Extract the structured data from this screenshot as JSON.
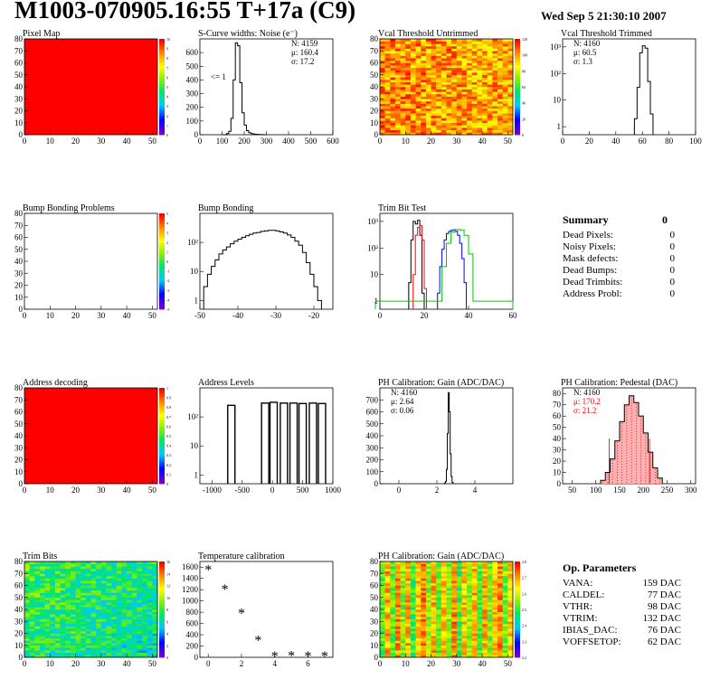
{
  "header": {
    "title": "M1003-070905.16:55 T+17a (C9)",
    "date": "Wed Sep  5 21:30:10 2007"
  },
  "chart_data": [
    {
      "id": "pixel-map",
      "type": "heatmap",
      "title": "Pixel Map",
      "pattern": "uniform_max",
      "xlim": [
        0,
        52
      ],
      "ylim": [
        0,
        80
      ],
      "xticks": [
        0,
        10,
        20,
        30,
        40,
        50
      ],
      "yticks": [
        0,
        10,
        20,
        30,
        40,
        50,
        60,
        70,
        80
      ],
      "zticks": [
        "0",
        "1",
        "2",
        "3",
        "4",
        "5",
        "6",
        "7",
        "8",
        "9",
        "10"
      ],
      "zlabel_mode": "int"
    },
    {
      "id": "scurve",
      "type": "histogram",
      "title": "S-Curve widths: Noise (e⁻)",
      "xlim": [
        0,
        600
      ],
      "ylim": [
        0,
        700
      ],
      "xticks": [
        0,
        100,
        200,
        300,
        400,
        500,
        600
      ],
      "yticks": [
        0,
        100,
        200,
        300,
        400,
        500,
        600
      ],
      "bins_x": [
        100,
        110,
        120,
        130,
        140,
        150,
        160,
        170,
        180,
        190,
        200,
        210,
        220,
        230,
        240,
        250,
        260,
        270,
        280,
        290,
        300
      ],
      "values": [
        0,
        0,
        8,
        25,
        120,
        400,
        670,
        650,
        380,
        160,
        70,
        30,
        15,
        8,
        5,
        3,
        2,
        1,
        1,
        0
      ],
      "stats": [
        "N: 4159",
        "μ: 160.4",
        "σ: 17.2"
      ],
      "annotation": "<= 1"
    },
    {
      "id": "vcal-untrimmed",
      "type": "heatmap",
      "title": "Vcal Threshold Untrimmed",
      "pattern": "noisy_warm",
      "xlim": [
        0,
        52
      ],
      "ylim": [
        0,
        80
      ],
      "xticks": [
        0,
        10,
        20,
        30,
        40,
        50
      ],
      "yticks": [
        0,
        10,
        20,
        30,
        40,
        50,
        60,
        70,
        80
      ],
      "zticks": [
        "0",
        "20",
        "40",
        "60",
        "80",
        "100",
        "120"
      ]
    },
    {
      "id": "vcal-trimmed",
      "type": "histogram",
      "title": "Vcal Threshold Trimmed",
      "log": true,
      "xlim": [
        0,
        100
      ],
      "ylim": [
        0.5,
        2000
      ],
      "xticks": [
        0,
        20,
        40,
        60,
        80,
        100
      ],
      "yticks": [
        1,
        10,
        100,
        1000
      ],
      "bins_x": [
        54,
        56,
        58,
        60,
        62,
        64,
        66,
        68
      ],
      "values": [
        2,
        30,
        600,
        1100,
        900,
        50,
        3
      ],
      "stats": [
        "N: 4160",
        "μ: 60.5",
        "σ:  1.3"
      ]
    },
    {
      "id": "bump-problems",
      "type": "heatmap",
      "title": "Bump Bonding Problems",
      "pattern": "empty",
      "xlim": [
        0,
        52
      ],
      "ylim": [
        0,
        80
      ],
      "xticks": [
        0,
        10,
        20,
        30,
        40,
        50
      ],
      "yticks": [
        0,
        10,
        20,
        30,
        40,
        50,
        60,
        70,
        80
      ],
      "zticks": [
        "-5",
        "-4",
        "-3",
        "-2",
        "-1",
        "0",
        "1",
        "2",
        "3",
        "4",
        "5"
      ]
    },
    {
      "id": "bump-bonding",
      "type": "histogram",
      "title": "Bump Bonding",
      "log": true,
      "xlim": [
        -50,
        -15
      ],
      "ylim": [
        0.5,
        1000
      ],
      "xticks": [
        -50,
        -40,
        -30,
        -20
      ],
      "yticks": [
        1,
        10,
        100
      ],
      "bins_x": [
        -49,
        -48,
        -47,
        -46,
        -45,
        -44,
        -43,
        -42,
        -41,
        -40,
        -39,
        -38,
        -37,
        -36,
        -35,
        -34,
        -33,
        -32,
        -31,
        -30,
        -29,
        -28,
        -27,
        -26,
        -25,
        -24,
        -23,
        -22,
        -21,
        -20,
        -19,
        -18
      ],
      "values": [
        3,
        8,
        15,
        25,
        40,
        55,
        70,
        90,
        110,
        130,
        150,
        170,
        190,
        210,
        220,
        240,
        250,
        260,
        260,
        250,
        230,
        210,
        180,
        150,
        110,
        80,
        45,
        20,
        8,
        3,
        1
      ],
      "stats": []
    },
    {
      "id": "trim-bit-test",
      "type": "histogram_multi",
      "title": "Trim Bit Test",
      "log": true,
      "xlim": [
        0,
        60
      ],
      "ylim": [
        0.5,
        2000
      ],
      "xticks": [
        0,
        20,
        40,
        60
      ],
      "yticks": [
        1,
        10,
        100,
        1000
      ],
      "series": [
        {
          "color": "#000000",
          "bins_x": [
            13,
            14,
            15,
            16,
            17,
            18,
            19,
            20
          ],
          "values": [
            5,
            200,
            1000,
            800,
            1100,
            300,
            2
          ]
        },
        {
          "color": "#ff0000",
          "bins_x": [
            15,
            16,
            17,
            18,
            19,
            20,
            21
          ],
          "values": [
            10,
            300,
            600,
            700,
            200,
            3
          ]
        },
        {
          "color": "#0000ff",
          "bins_x": [
            26,
            27,
            28,
            29,
            30,
            31,
            32,
            33,
            34,
            35,
            36,
            37,
            38,
            39
          ],
          "values": [
            2,
            20,
            90,
            200,
            350,
            420,
            460,
            480,
            430,
            300,
            150,
            40,
            5
          ]
        },
        {
          "color": "#00cc00",
          "bins_x": [
            -2,
            0,
            26,
            28,
            30,
            32,
            34,
            36,
            38,
            40,
            42,
            60
          ],
          "values": [
            1,
            1,
            1,
            20,
            150,
            400,
            500,
            480,
            300,
            60,
            1
          ]
        }
      ],
      "stats": []
    },
    {
      "id": "address-decoding",
      "type": "heatmap",
      "title": "Address decoding",
      "pattern": "uniform_max",
      "xlim": [
        0,
        52
      ],
      "ylim": [
        0,
        80
      ],
      "xticks": [
        0,
        10,
        20,
        30,
        40,
        50
      ],
      "yticks": [
        0,
        10,
        20,
        30,
        40,
        50,
        60,
        70,
        80
      ],
      "zticks": [
        "0",
        "0.1",
        "0.2",
        "0.3",
        "0.4",
        "0.5",
        "0.6",
        "0.7",
        "0.8",
        "0.9",
        "1"
      ]
    },
    {
      "id": "address-levels",
      "type": "spikes",
      "title": "Address Levels",
      "log": true,
      "xlim": [
        -1200,
        1000
      ],
      "ylim": [
        0.5,
        1000
      ],
      "xticks": [
        -1000,
        -500,
        0,
        500,
        1000
      ],
      "yticks": [
        1,
        10,
        100
      ],
      "spikes": [
        [
          -680,
          250
        ],
        [
          -120,
          300
        ],
        [
          20,
          320
        ],
        [
          190,
          300
        ],
        [
          350,
          300
        ],
        [
          500,
          290
        ],
        [
          670,
          300
        ],
        [
          820,
          290
        ]
      ],
      "stats": []
    },
    {
      "id": "ph-gain",
      "type": "histogram",
      "title": "PH Calibration: Gain (ADC/DAC)",
      "xlim": [
        -1,
        6
      ],
      "ylim": [
        0,
        800
      ],
      "xticks": [
        0,
        2,
        4
      ],
      "yticks": [
        0,
        100,
        200,
        300,
        400,
        500,
        600,
        700
      ],
      "bins_x": [
        2.4,
        2.45,
        2.5,
        2.55,
        2.6,
        2.65,
        2.7,
        2.75,
        2.8,
        2.85
      ],
      "values": [
        5,
        20,
        120,
        420,
        760,
        600,
        250,
        60,
        10
      ],
      "stats": [
        "N: 4160",
        "μ: 2.64",
        "σ: 0.06"
      ]
    },
    {
      "id": "ph-pedestal",
      "type": "histogram_fill",
      "title": "PH Calibration: Pedestal (DAC)",
      "xlim": [
        30,
        310
      ],
      "ylim": [
        0,
        85
      ],
      "xticks": [
        50,
        100,
        150,
        200,
        250,
        300
      ],
      "yticks": [
        0,
        10,
        20,
        30,
        40,
        50,
        60,
        70,
        80
      ],
      "bins_x": [
        110,
        120,
        130,
        140,
        150,
        160,
        170,
        180,
        190,
        200,
        210,
        220,
        230,
        240
      ],
      "values": [
        3,
        10,
        22,
        38,
        55,
        70,
        78,
        72,
        60,
        45,
        28,
        14,
        5
      ],
      "fit_lines": [
        128,
        213
      ],
      "stats": [
        "N: 4160",
        "μ: 170.2",
        "σ: 21.2"
      ],
      "stats_colors": [
        "#000000",
        "#ff0000",
        "#ff0000"
      ]
    },
    {
      "id": "trim-bits",
      "type": "heatmap",
      "title": "Trim Bits",
      "pattern": "noisy_cool",
      "xlim": [
        0,
        52
      ],
      "ylim": [
        0,
        80
      ],
      "xticks": [
        0,
        10,
        20,
        30,
        40,
        50
      ],
      "yticks": [
        0,
        10,
        20,
        30,
        40,
        50,
        60,
        70,
        80
      ],
      "zticks": [
        "0",
        "2",
        "4",
        "6",
        "8",
        "10",
        "12",
        "14",
        "16"
      ]
    },
    {
      "id": "temp-calib",
      "type": "scatter",
      "title": "Temperature calibration",
      "xlim": [
        -0.5,
        7.5
      ],
      "ylim": [
        0,
        1700
      ],
      "xticks": [
        0,
        2,
        4,
        6
      ],
      "yticks": [
        0,
        200,
        400,
        600,
        800,
        1000,
        1200,
        1400,
        1600
      ],
      "x": [
        0,
        1,
        2,
        3,
        4,
        5,
        6,
        7
      ],
      "y": [
        1550,
        1200,
        780,
        300,
        20,
        25,
        20,
        20
      ]
    },
    {
      "id": "ph-gain-map",
      "type": "heatmap",
      "title": "PH Calibration: Gain (ADC/DAC)",
      "pattern": "striped",
      "xlim": [
        0,
        52
      ],
      "ylim": [
        0,
        80
      ],
      "xticks": [
        0,
        10,
        20,
        30,
        40,
        50
      ],
      "yticks": [
        0,
        10,
        20,
        30,
        40,
        50,
        60,
        70,
        80
      ],
      "zticks": [
        "2.2",
        "2.3",
        "2.4",
        "2.5",
        "2.6",
        "2.7",
        "2.8"
      ]
    }
  ],
  "summary": {
    "title": "Summary",
    "value": "0",
    "rows": [
      {
        "label": "Dead Pixels:",
        "value": "0"
      },
      {
        "label": "Noisy Pixels:",
        "value": "0"
      },
      {
        "label": "Mask defects:",
        "value": "0"
      },
      {
        "label": "Dead Bumps:",
        "value": "0"
      },
      {
        "label": "Dead Trimbits:",
        "value": "0"
      },
      {
        "label": "Address Probl:",
        "value": "0"
      }
    ]
  },
  "op_params": {
    "title": "Op. Parameters",
    "rows": [
      {
        "label": "VANA:",
        "value": "159 DAC"
      },
      {
        "label": "CALDEL:",
        "value": "77 DAC"
      },
      {
        "label": "VTHR:",
        "value": "98 DAC"
      },
      {
        "label": "VTRIM:",
        "value": "132 DAC"
      },
      {
        "label": "IBIAS_DAC:",
        "value": "76 DAC"
      },
      {
        "label": "VOFFSETOP:",
        "value": "62 DAC"
      }
    ]
  }
}
